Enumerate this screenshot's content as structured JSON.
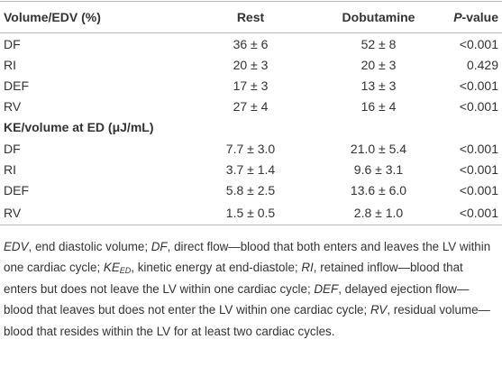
{
  "table": {
    "header": {
      "label": "Volume/EDV (%)",
      "columns": [
        "Rest",
        "Dobutamine"
      ],
      "p_italic": "P",
      "p_rest": "-value"
    },
    "groups": [
      {
        "rows": [
          [
            "DF",
            "36 ± 6",
            "52 ± 8",
            "<0.001"
          ],
          [
            "RI",
            "20 ± 3",
            "20 ± 3",
            "0.429"
          ],
          [
            "DEF",
            "17 ± 3",
            "13 ± 3",
            "<0.001"
          ],
          [
            "RV",
            "27 ± 4",
            "16 ± 4",
            "<0.001"
          ]
        ]
      },
      {
        "title": "KE/volume at ED (μJ/mL)",
        "rows": [
          [
            "DF",
            "7.7 ± 3.0",
            "21.0 ± 5.4",
            "<0.001"
          ],
          [
            "RI",
            "3.7 ± 1.4",
            "9.6 ± 3.1",
            "<0.001"
          ],
          [
            "DEF",
            "5.8 ± 2.5",
            "13.6 ± 6.0",
            "<0.001"
          ],
          [
            "RV",
            "1.5 ± 0.5",
            "2.8 ± 1.0",
            "<0.001"
          ]
        ]
      }
    ]
  },
  "footnote": [
    {
      "term": "EDV",
      "text": ", end diastolic volume; "
    },
    {
      "term": "DF",
      "text": ", direct flow—blood that both enters and leaves the LV within one cardiac cycle; "
    },
    {
      "term": "KE",
      "sub": "ED",
      "text": ", kinetic energy at end-diastole; "
    },
    {
      "term": "RI",
      "text": ", retained inflow—blood that enters but does not leave the LV within one cardiac cycle; "
    },
    {
      "term": "DEF",
      "text": ", delayed ejection flow—blood that leaves but does not enter the LV within one cardiac cycle; "
    },
    {
      "term": "RV",
      "text": ", residual volume—blood that resides within the LV for at least two cardiac cycles."
    }
  ]
}
